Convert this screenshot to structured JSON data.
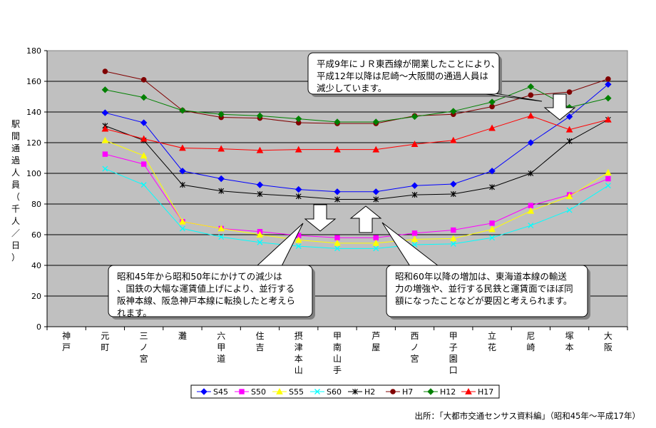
{
  "chart_data": {
    "type": "line",
    "ylabel": "駅間通過人員（千人／日）",
    "ylim": [
      0,
      180
    ],
    "yticks": [
      0,
      20,
      40,
      60,
      80,
      100,
      120,
      140,
      160,
      180
    ],
    "grid": true,
    "categories": [
      "神戸",
      "元町",
      "三ノ宮",
      "灘",
      "六甲道",
      "住吉",
      "摂津本山",
      "甲南山手",
      "芦屋",
      "西ノ宮",
      "甲子園口",
      "立花",
      "尼崎",
      "塚本",
      "大阪"
    ],
    "series": [
      {
        "name": "S45",
        "color": "#0000ff",
        "marker": "diamond",
        "values": [
          null,
          139.5,
          133,
          101.5,
          96.5,
          92.5,
          89.5,
          88,
          88,
          92,
          93,
          101.5,
          120,
          137,
          158
        ]
      },
      {
        "name": "S50",
        "color": "#ff00ff",
        "marker": "square",
        "values": [
          null,
          112.5,
          106,
          68.5,
          64,
          62,
          59.5,
          58,
          58,
          61,
          63,
          67.5,
          79,
          86,
          96.5
        ]
      },
      {
        "name": "S55",
        "color": "#ffff00",
        "marker": "triangle",
        "values": [
          null,
          121.5,
          111.5,
          68.5,
          64,
          60,
          56.5,
          54.5,
          54.5,
          57,
          57.5,
          63.5,
          75.5,
          85,
          100.5
        ]
      },
      {
        "name": "S60",
        "color": "#00ffff",
        "marker": "x",
        "values": [
          null,
          103,
          92.5,
          64,
          58.5,
          55,
          52.5,
          51,
          51,
          53.5,
          54,
          58,
          66,
          76,
          92
        ]
      },
      {
        "name": "H2",
        "color": "#000000",
        "marker": "star",
        "values": [
          null,
          131,
          121.5,
          92.5,
          88.5,
          86.5,
          85,
          83,
          83,
          86,
          86.5,
          91,
          100,
          121,
          135
        ]
      },
      {
        "name": "H7",
        "color": "#800000",
        "marker": "circle",
        "values": [
          null,
          166.5,
          161,
          141,
          136.5,
          136,
          133,
          132.5,
          132.5,
          137.5,
          138.5,
          143.5,
          151,
          153,
          161.5
        ]
      },
      {
        "name": "H12",
        "color": "#008000",
        "marker": "diamond",
        "values": [
          null,
          154.5,
          149.5,
          141,
          138.5,
          137.5,
          135.5,
          133.5,
          133.5,
          137,
          140.5,
          146.5,
          156.5,
          143,
          149
        ]
      },
      {
        "name": "H17",
        "color": "#ff0000",
        "marker": "triangle",
        "values": [
          null,
          129,
          122.5,
          116.5,
          116,
          115,
          115.5,
          115.5,
          115.5,
          119,
          121.5,
          129.5,
          137.5,
          128.5,
          135
        ]
      }
    ],
    "annotations": [
      "平成9年にＪＲ東西線が開業したことにより、平成12年以降は尼崎～大阪間の通過人員は減少しています。",
      "昭和45年から昭和50年にかけての減少は、国鉄の大幅な運賃値上げにより、並行する阪神本線、阪急神戸本線に転換したと考えられます。",
      "昭和60年以降の増加は、東海道本線の輸送力の増強や、並行する民鉄と運賃面でほぼ同額になったことなどが要因と考えられます。"
    ],
    "legend_position": "bottom-center",
    "source": "出所：「大都市交通センサス資料編」（昭和45年～平成17年）"
  }
}
